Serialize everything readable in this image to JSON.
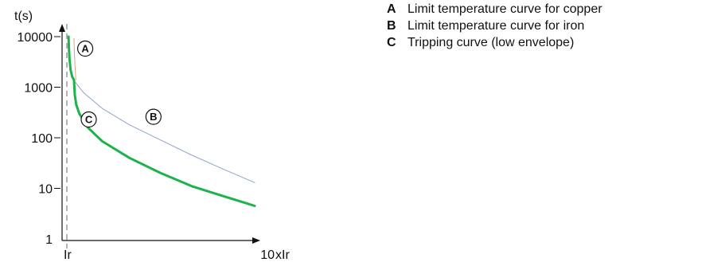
{
  "chart_data": {
    "type": "line",
    "y_scale": "log",
    "ylabel": "t(s)",
    "ylim": [
      1,
      10000
    ],
    "y_ticks": [
      "1",
      "10",
      "100",
      "1000",
      "10000"
    ],
    "x_ticks": [
      "Ir",
      "10"
    ],
    "x_unit": "xIr",
    "xlim": [
      1,
      10
    ],
    "series": [
      {
        "key": "A",
        "color": "#d9a38a",
        "stroke_width": 1,
        "x": [
          1.34,
          1.38,
          1.43
        ],
        "y": [
          9200,
          3000,
          1400
        ]
      },
      {
        "key": "B",
        "color": "#8ea3cf",
        "stroke_width": 1,
        "x": [
          1.26,
          1.8,
          2.7,
          4.0,
          5.5,
          7.0,
          8.5,
          10.0
        ],
        "y": [
          1500,
          780,
          380,
          180,
          90,
          45,
          24,
          13
        ]
      },
      {
        "key": "C",
        "color": "#1db34b",
        "stroke_width": 3,
        "x": [
          1.08,
          1.1,
          1.13,
          1.18,
          1.26,
          1.34,
          1.38,
          1.45,
          1.6,
          2.0,
          2.7,
          4.0,
          5.5,
          7.0,
          8.5,
          10.0
        ],
        "y": [
          10000,
          6000,
          3500,
          2200,
          1600,
          1400,
          700,
          450,
          300,
          160,
          85,
          40,
          20,
          11,
          7,
          4.5
        ]
      }
    ],
    "markers": [
      {
        "label": "A",
        "x": 1.88,
        "y": 5800
      },
      {
        "label": "B",
        "x": 5.15,
        "y": 260
      },
      {
        "label": "C",
        "x": 2.05,
        "y": 230
      }
    ]
  },
  "legend": [
    {
      "key": "A",
      "text": "Limit temperature curve for copper"
    },
    {
      "key": "B",
      "text": "Limit temperature curve for iron"
    },
    {
      "key": "C",
      "text": "Tripping curve (low envelope)"
    }
  ]
}
